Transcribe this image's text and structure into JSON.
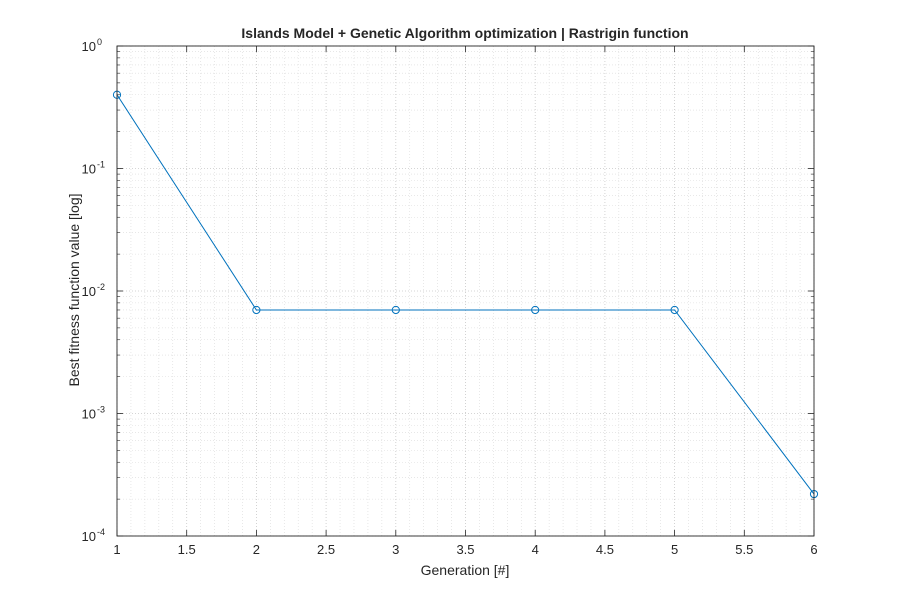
{
  "chart_data": {
    "type": "line",
    "title": "Islands Model + Genetic Algorithm optimization | Rastrigin function",
    "xlabel": "Generation [#]",
    "ylabel": "Best fitness function value [log]",
    "xlim": [
      1,
      6
    ],
    "ylim": [
      0.0001,
      1
    ],
    "yscale": "log",
    "grid": true,
    "minor_grid": true,
    "x_ticks": [
      1,
      1.5,
      2,
      2.5,
      3,
      3.5,
      4,
      4.5,
      5,
      5.5,
      6
    ],
    "x_tick_labels": [
      "1",
      "1.5",
      "2",
      "2.5",
      "3",
      "3.5",
      "4",
      "4.5",
      "5",
      "5.5",
      "6"
    ],
    "y_ticks": [
      {
        "value": 0.0001,
        "base": "10",
        "exp": "-4"
      },
      {
        "value": 0.001,
        "base": "10",
        "exp": "-3"
      },
      {
        "value": 0.01,
        "base": "10",
        "exp": "-2"
      },
      {
        "value": 0.1,
        "base": "10",
        "exp": "-1"
      },
      {
        "value": 1,
        "base": "10",
        "exp": "0"
      }
    ],
    "series": [
      {
        "marker": "circle",
        "color": "#0072BD",
        "x": [
          1,
          2,
          3,
          4,
          5,
          6
        ],
        "y": [
          0.4,
          0.007,
          0.007,
          0.007,
          0.007,
          0.00022
        ]
      }
    ]
  }
}
